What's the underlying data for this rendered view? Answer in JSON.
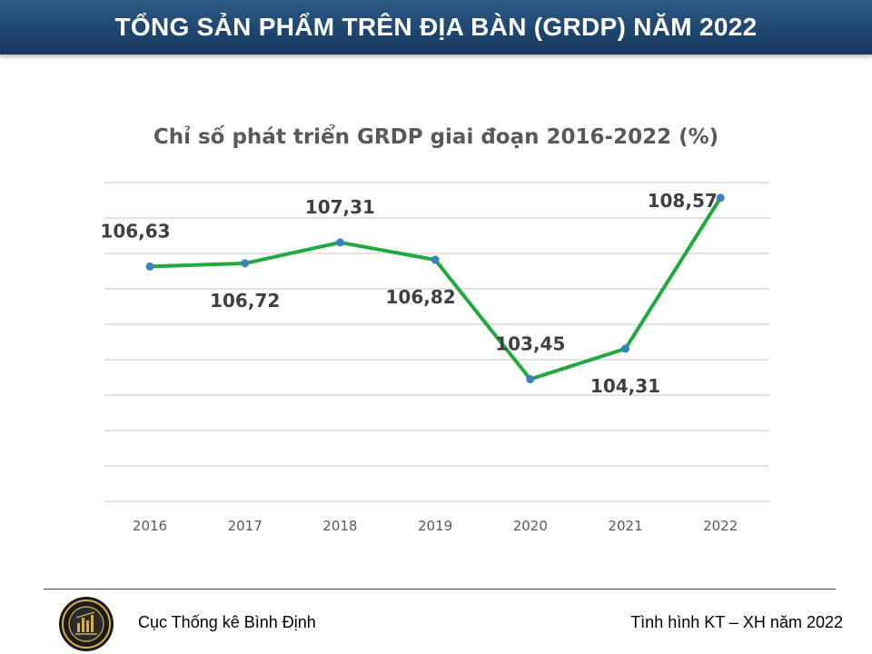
{
  "header": {
    "title": "TỔNG SẢN PHẨM TRÊN ĐỊA BÀN (GRDP) NĂM 2022"
  },
  "chart_data": {
    "type": "line",
    "title": "Chỉ số phát triển GRDP giai đoạn 2016-2022 (%)",
    "categories": [
      "2016",
      "2017",
      "2018",
      "2019",
      "2020",
      "2021",
      "2022"
    ],
    "series": [
      {
        "values": [
          106.63,
          106.72,
          107.31,
          106.82,
          103.45,
          104.31,
          108.57
        ],
        "labels": [
          "106,63",
          "106,72",
          "107,31",
          "106,82",
          "103,45",
          "104,31",
          "108,57"
        ],
        "color": "#1faa3c",
        "marker_color": "#3f7fbf"
      }
    ],
    "ylim": [
      100,
      109
    ],
    "grid": true,
    "legend": "none"
  },
  "footer": {
    "left_text": "Cục Thống kê Bình Định",
    "right_text": "Tình hình KT – XH năm 2022"
  }
}
